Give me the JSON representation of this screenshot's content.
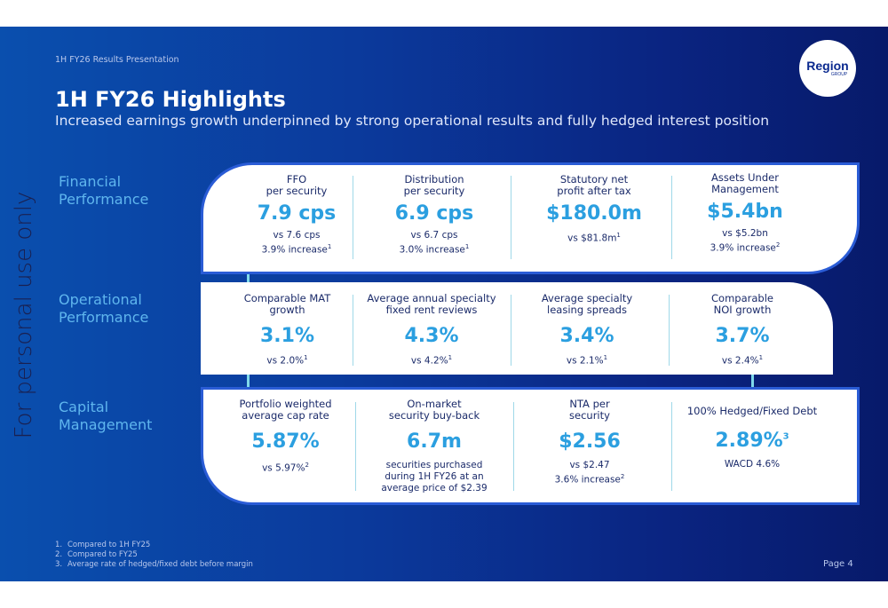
{
  "header": {
    "top_label": "1H FY26 Results Presentation",
    "logo_main": "Region",
    "logo_sub": "GROUP",
    "title": "1H FY26 Highlights",
    "subtitle": "Increased earnings growth underpinned by strong operational results and fully hedged interest position"
  },
  "watermark": "For personal use only",
  "sections": [
    {
      "label_line1": "Financial",
      "label_line2": "Performance",
      "metrics": [
        {
          "label1": "FFO",
          "label2": "per security",
          "value": "7.9 cps",
          "detail1": "vs 7.6 cps",
          "detail2": "3.9% increase",
          "sup2": "1"
        },
        {
          "label1": "Distribution",
          "label2": "per security",
          "value": "6.9 cps",
          "detail1": "vs 6.7 cps",
          "detail2": "3.0% increase",
          "sup2": "1"
        },
        {
          "label1": "Statutory net",
          "label2": "profit after tax",
          "value": "$180.0m",
          "detail1": "vs $81.8m",
          "sup1": "1"
        },
        {
          "label1": "Assets Under",
          "label2": "Management",
          "value": "$5.4bn",
          "detail1": "vs $5.2bn",
          "detail2": "3.9% increase",
          "sup2": "2"
        }
      ]
    },
    {
      "label_line1": "Operational",
      "label_line2": "Performance",
      "metrics": [
        {
          "label1": "Comparable MAT",
          "label2": "growth",
          "value": "3.1%",
          "detail1": "vs 2.0%",
          "sup1": "1"
        },
        {
          "label1": "Average annual specialty",
          "label2": "fixed rent reviews",
          "value": "4.3%",
          "detail1": "vs 4.2%",
          "sup1": "1"
        },
        {
          "label1": "Average specialty",
          "label2": "leasing spreads",
          "value": "3.4%",
          "detail1": "vs 2.1%",
          "sup1": "1"
        },
        {
          "label1": "Comparable",
          "label2": "NOI growth",
          "value": "3.7%",
          "detail1": "vs 2.4%",
          "sup1": "1"
        }
      ]
    },
    {
      "label_line1": "Capital",
      "label_line2": "Management",
      "metrics": [
        {
          "label1": "Portfolio weighted",
          "label2": "average cap rate",
          "value": "5.87%",
          "detail1": "vs 5.97%",
          "sup1": "2"
        },
        {
          "label1": "On-market",
          "label2": "security buy-back",
          "value": "6.7m",
          "detail1": "securities purchased",
          "detail2": "during 1H FY26 at an",
          "detail3": "average price of $2.39"
        },
        {
          "label1": "NTA per",
          "label2": "security",
          "value": "$2.56",
          "detail1": "vs $2.47",
          "detail2": "3.6% increase",
          "sup2": "2"
        },
        {
          "label1": "100% Hedged/Fixed Debt",
          "value": "2.89%",
          "value_sup": "3",
          "detail1": "WACD 4.6%"
        }
      ]
    }
  ],
  "footnotes": [
    {
      "num": "1.",
      "text": "Compared to 1H FY25"
    },
    {
      "num": "2.",
      "text": "Compared to FY25"
    },
    {
      "num": "3.",
      "text": "Average rate of hedged/fixed debt before margin"
    }
  ],
  "page_number": "Page 4",
  "colors": {
    "accent": "#2b9fe0",
    "section_label": "#5fb6ee",
    "card_border": "#2a5cd6",
    "dark_text": "#1b2b6a"
  }
}
